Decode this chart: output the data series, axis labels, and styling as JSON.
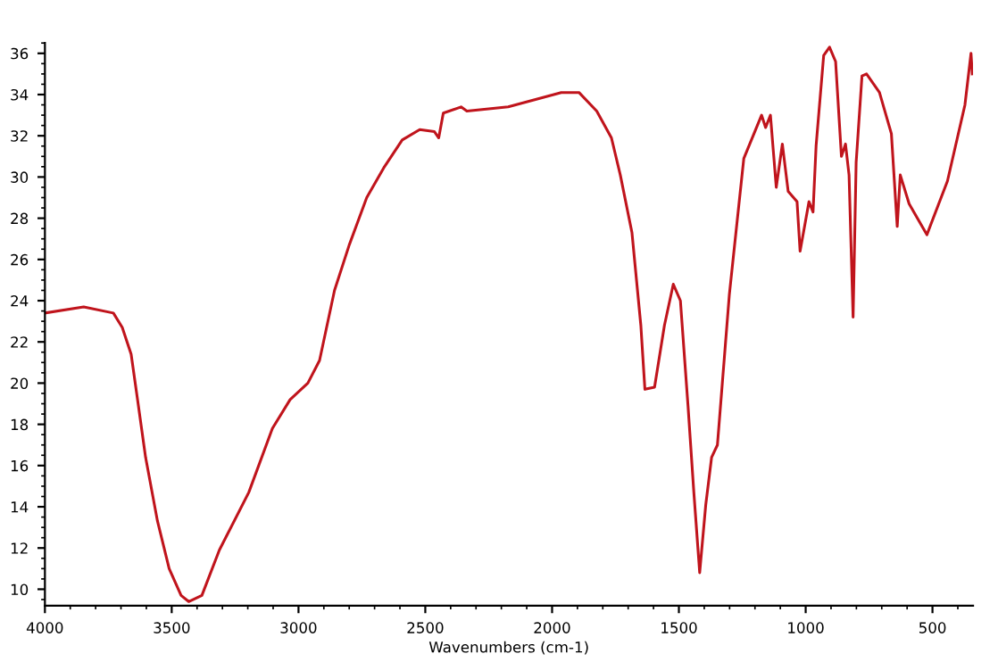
{
  "chart_data": {
    "type": "line",
    "xlabel": "Wavenumbers (cm-1)",
    "xlim": [
      4000,
      340
    ],
    "ylim": [
      9.2,
      36.5
    ],
    "xticks": [
      4000,
      3500,
      3000,
      2500,
      2000,
      1500,
      1000,
      500
    ],
    "yticks": [
      10,
      12,
      14,
      16,
      18,
      20,
      22,
      24,
      26,
      28,
      30,
      32,
      34,
      36
    ],
    "grid": false,
    "legend": false,
    "marker": "none",
    "line_style": "solid",
    "series": [
      {
        "color": "#c0141c",
        "x": [
          4000,
          3847,
          3730,
          3695,
          3660,
          3637,
          3603,
          3556,
          3510,
          3463,
          3433,
          3381,
          3312,
          3196,
          3103,
          3033,
          2963,
          2917,
          2858,
          2800,
          2731,
          2661,
          2591,
          2522,
          2464,
          2447,
          2429,
          2359,
          2336,
          2173,
          1964,
          1894,
          1824,
          1766,
          1731,
          1685,
          1650,
          1634,
          1596,
          1557,
          1522,
          1494,
          1464,
          1441,
          1418,
          1394,
          1371,
          1348,
          1301,
          1244,
          1174,
          1158,
          1139,
          1116,
          1092,
          1069,
          1034,
          1022,
          987,
          971,
          959,
          929,
          906,
          882,
          859,
          843,
          829,
          813,
          801,
          778,
          760,
          709,
          662,
          639,
          627,
          592,
          522,
          441,
          372,
          348,
          343
        ],
        "values": [
          23.4,
          23.7,
          23.4,
          22.7,
          21.4,
          19.4,
          16.4,
          13.3,
          11.0,
          9.7,
          9.4,
          9.7,
          11.9,
          14.7,
          17.8,
          19.2,
          20.0,
          21.1,
          24.5,
          26.7,
          29.0,
          30.5,
          31.8,
          32.3,
          32.2,
          31.9,
          33.1,
          33.4,
          33.2,
          33.4,
          34.1,
          34.1,
          33.2,
          31.9,
          30.1,
          27.3,
          22.8,
          19.7,
          19.8,
          22.8,
          24.8,
          24.0,
          18.9,
          14.7,
          10.8,
          14.1,
          16.4,
          17.0,
          24.3,
          30.9,
          33.0,
          32.4,
          33.0,
          29.5,
          31.6,
          29.3,
          28.8,
          26.4,
          28.8,
          28.3,
          31.5,
          35.9,
          36.3,
          35.6,
          31.0,
          31.6,
          30.1,
          23.2,
          30.7,
          34.9,
          35.0,
          34.1,
          32.1,
          27.6,
          30.1,
          28.7,
          27.2,
          29.8,
          33.5,
          36.0,
          35.0
        ]
      }
    ]
  }
}
